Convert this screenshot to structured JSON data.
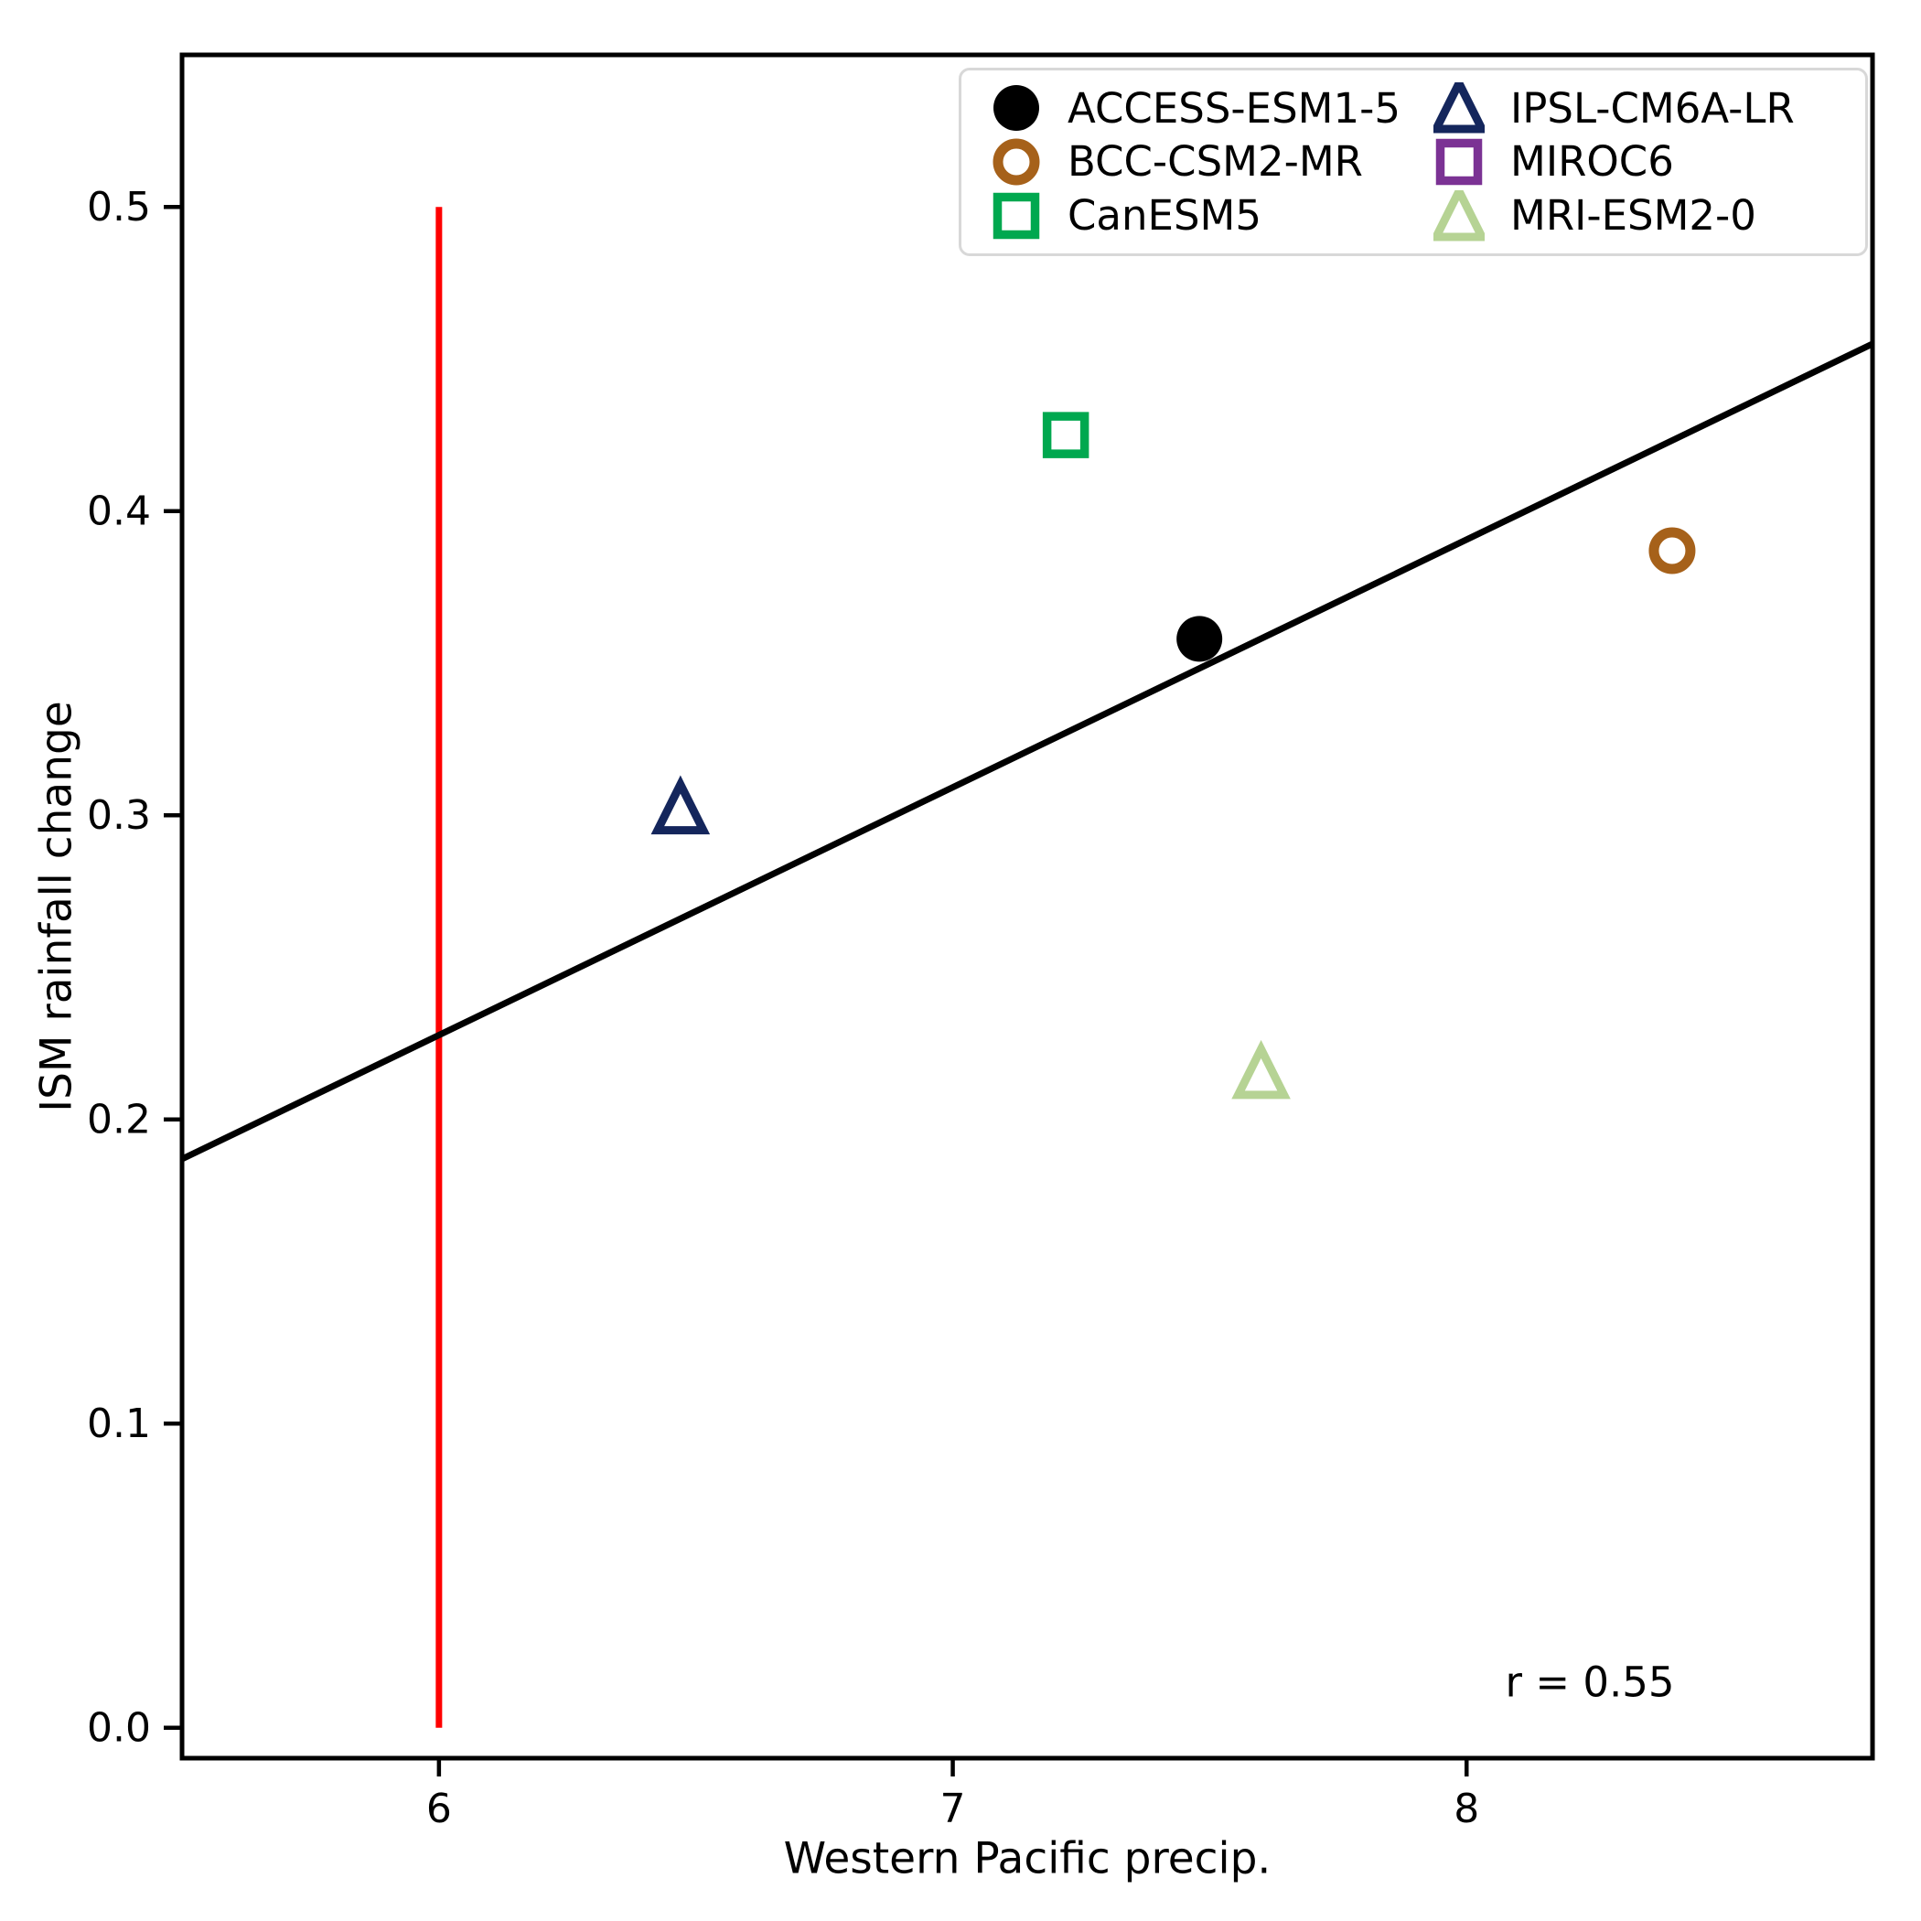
{
  "chart_data": {
    "type": "scatter",
    "title": "",
    "xlabel": "Western Pacific precip.",
    "ylabel": "ISM rainfall change",
    "xlim": [
      5.5,
      8.79
    ],
    "ylim": [
      -0.01,
      0.55
    ],
    "xticks": [
      6,
      7,
      8
    ],
    "xtick_labels": [
      "6",
      "7",
      "8"
    ],
    "yticks": [
      0.0,
      0.1,
      0.2,
      0.3,
      0.4,
      0.5
    ],
    "ytick_labels": [
      "0.0",
      "0.1",
      "0.2",
      "0.3",
      "0.4",
      "0.5"
    ],
    "grid": false,
    "legend_position": "upper right",
    "legend_columns": 2,
    "annotation": {
      "text": "r = 0.55",
      "x": 8.24,
      "y": 0.015
    },
    "reference_line": {
      "type": "vertical",
      "x": 6.0,
      "y_from": 0.0,
      "y_to": 0.5,
      "color": "#ff0000",
      "width": 7
    },
    "fit_line": {
      "x": [
        5.5,
        8.79
      ],
      "y": [
        0.187,
        0.455
      ],
      "color": "#000000",
      "width": 7
    },
    "series": [
      {
        "name": "ACCESS-ESM1-5",
        "marker": "circle-filled",
        "color": "#000000",
        "x": 7.48,
        "y": 0.358,
        "visible": true
      },
      {
        "name": "BCC-CSM2-MR",
        "marker": "circle-open",
        "color": "#a6611a",
        "x": 8.4,
        "y": 0.387,
        "visible": true
      },
      {
        "name": "CanESM5",
        "marker": "square-open",
        "color": "#00a84f",
        "x": 7.22,
        "y": 0.425,
        "visible": true
      },
      {
        "name": "IPSL-CM6A-LR",
        "marker": "triangle-open",
        "color": "#14265c",
        "x": 6.47,
        "y": 0.302,
        "visible": true
      },
      {
        "name": "MIROC6",
        "marker": "square-open",
        "color": "#7b3294",
        "x": null,
        "y": null,
        "visible": false
      },
      {
        "name": "MRI-ESM2-0",
        "marker": "triangle-open",
        "color": "#b6d394",
        "x": 7.6,
        "y": 0.215,
        "visible": true
      }
    ]
  }
}
